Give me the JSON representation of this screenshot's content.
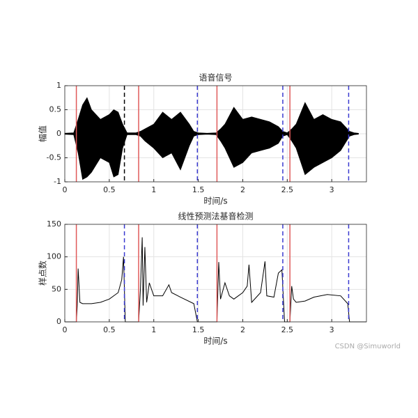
{
  "chart_data": [
    {
      "type": "area",
      "title": "语音信号",
      "xlabel": "时间/s",
      "ylabel": "幅值",
      "x": [
        0,
        0.1,
        0.15,
        0.2,
        0.25,
        0.3,
        0.4,
        0.5,
        0.55,
        0.6,
        0.65,
        0.7,
        0.8,
        0.85,
        0.9,
        1.0,
        1.1,
        1.2,
        1.3,
        1.4,
        1.45,
        1.5,
        1.6,
        1.7,
        1.75,
        1.8,
        1.9,
        2.0,
        2.1,
        2.2,
        2.3,
        2.4,
        2.45,
        2.5,
        2.55,
        2.6,
        2.7,
        2.8,
        2.9,
        3.0,
        3.1,
        3.2,
        3.25,
        3.3
      ],
      "series": [
        {
          "color": "#000000",
          "values": [
            0.01,
            0.02,
            0.3,
            0.6,
            0.75,
            0.5,
            0.3,
            0.4,
            0.5,
            0.45,
            0.2,
            0.02,
            0.02,
            0.05,
            0.1,
            0.2,
            0.45,
            0.3,
            0.45,
            0.2,
            0.05,
            0.02,
            0.01,
            0.02,
            0.1,
            0.2,
            0.55,
            0.3,
            0.35,
            0.3,
            0.25,
            0.15,
            0.05,
            0.02,
            0.1,
            0.2,
            0.65,
            0.3,
            0.4,
            0.3,
            0.25,
            0.05,
            0.02,
            0.01
          ]
        },
        {
          "color": "#000000",
          "values": [
            -0.01,
            -0.02,
            -0.4,
            -0.95,
            -0.9,
            -0.8,
            -0.5,
            -0.6,
            -0.9,
            -0.85,
            -0.3,
            -0.02,
            -0.02,
            -0.05,
            -0.15,
            -0.3,
            -0.5,
            -0.4,
            -0.75,
            -0.25,
            -0.05,
            -0.02,
            -0.01,
            -0.02,
            -0.15,
            -0.3,
            -0.7,
            -0.6,
            -0.4,
            -0.35,
            -0.3,
            -0.2,
            -0.05,
            -0.02,
            -0.15,
            -0.3,
            -0.85,
            -0.7,
            -0.6,
            -0.5,
            -0.35,
            -0.05,
            -0.02,
            -0.01
          ]
        }
      ],
      "xlim": [
        0,
        3.39
      ],
      "xticks": [
        0,
        0.5,
        1,
        1.5,
        2,
        2.5,
        3
      ],
      "ylim": [
        -1,
        1
      ],
      "yticks": [
        -1,
        -0.5,
        0,
        0.5,
        1
      ],
      "grid": true,
      "vlines": [
        {
          "x": 0.13,
          "color": "#e05a5a",
          "dashed": false
        },
        {
          "x": 0.67,
          "color": "#000000",
          "dashed": true
        },
        {
          "x": 0.83,
          "color": "#e05a5a",
          "dashed": false
        },
        {
          "x": 1.49,
          "color": "#3a3ad0",
          "dashed": true
        },
        {
          "x": 1.71,
          "color": "#e05a5a",
          "dashed": false
        },
        {
          "x": 2.45,
          "color": "#3a3ad0",
          "dashed": true
        },
        {
          "x": 2.53,
          "color": "#e05a5a",
          "dashed": false
        },
        {
          "x": 3.19,
          "color": "#3a3ad0",
          "dashed": true
        }
      ]
    },
    {
      "type": "line",
      "title": "线性预测法基音检测",
      "xlabel": "时间/s",
      "ylabel": "样点数",
      "x": [
        0,
        0.13,
        0.14,
        0.15,
        0.17,
        0.2,
        0.3,
        0.4,
        0.5,
        0.6,
        0.64,
        0.66,
        0.68,
        0.83,
        0.85,
        0.87,
        0.88,
        0.9,
        0.92,
        0.95,
        1.0,
        1.1,
        1.17,
        1.2,
        1.3,
        1.45,
        1.49,
        1.71,
        1.73,
        1.75,
        1.8,
        1.85,
        1.9,
        2.0,
        2.05,
        2.07,
        2.1,
        2.2,
        2.25,
        2.27,
        2.35,
        2.4,
        2.44,
        2.47,
        2.53,
        2.55,
        2.57,
        2.6,
        2.7,
        2.8,
        2.95,
        3.1,
        3.18,
        3.2,
        3.39
      ],
      "series": [
        {
          "color": "#000000",
          "values": [
            0,
            0,
            25,
            82,
            30,
            28,
            28,
            30,
            35,
            45,
            65,
            100,
            0,
            0,
            50,
            130,
            25,
            115,
            30,
            60,
            40,
            40,
            57,
            45,
            38,
            28,
            0,
            0,
            92,
            35,
            60,
            40,
            35,
            45,
            55,
            88,
            30,
            45,
            93,
            40,
            38,
            75,
            80,
            0,
            0,
            55,
            35,
            30,
            32,
            38,
            42,
            40,
            28,
            0,
            0
          ]
        }
      ],
      "xlim": [
        0,
        3.39
      ],
      "xticks": [
        0,
        0.5,
        1,
        1.5,
        2,
        2.5,
        3
      ],
      "ylim": [
        0,
        150
      ],
      "yticks": [
        0,
        50,
        100,
        150
      ],
      "grid": true,
      "vlines": [
        {
          "x": 0.13,
          "color": "#e05a5a",
          "dashed": false
        },
        {
          "x": 0.67,
          "color": "#3a3ad0",
          "dashed": true
        },
        {
          "x": 0.83,
          "color": "#e05a5a",
          "dashed": false
        },
        {
          "x": 1.49,
          "color": "#3a3ad0",
          "dashed": true
        },
        {
          "x": 1.71,
          "color": "#e05a5a",
          "dashed": false
        },
        {
          "x": 2.45,
          "color": "#3a3ad0",
          "dashed": true
        },
        {
          "x": 2.53,
          "color": "#e05a5a",
          "dashed": false
        },
        {
          "x": 3.19,
          "color": "#3a3ad0",
          "dashed": true
        }
      ]
    }
  ],
  "watermark": "CSDN @Simuworld"
}
